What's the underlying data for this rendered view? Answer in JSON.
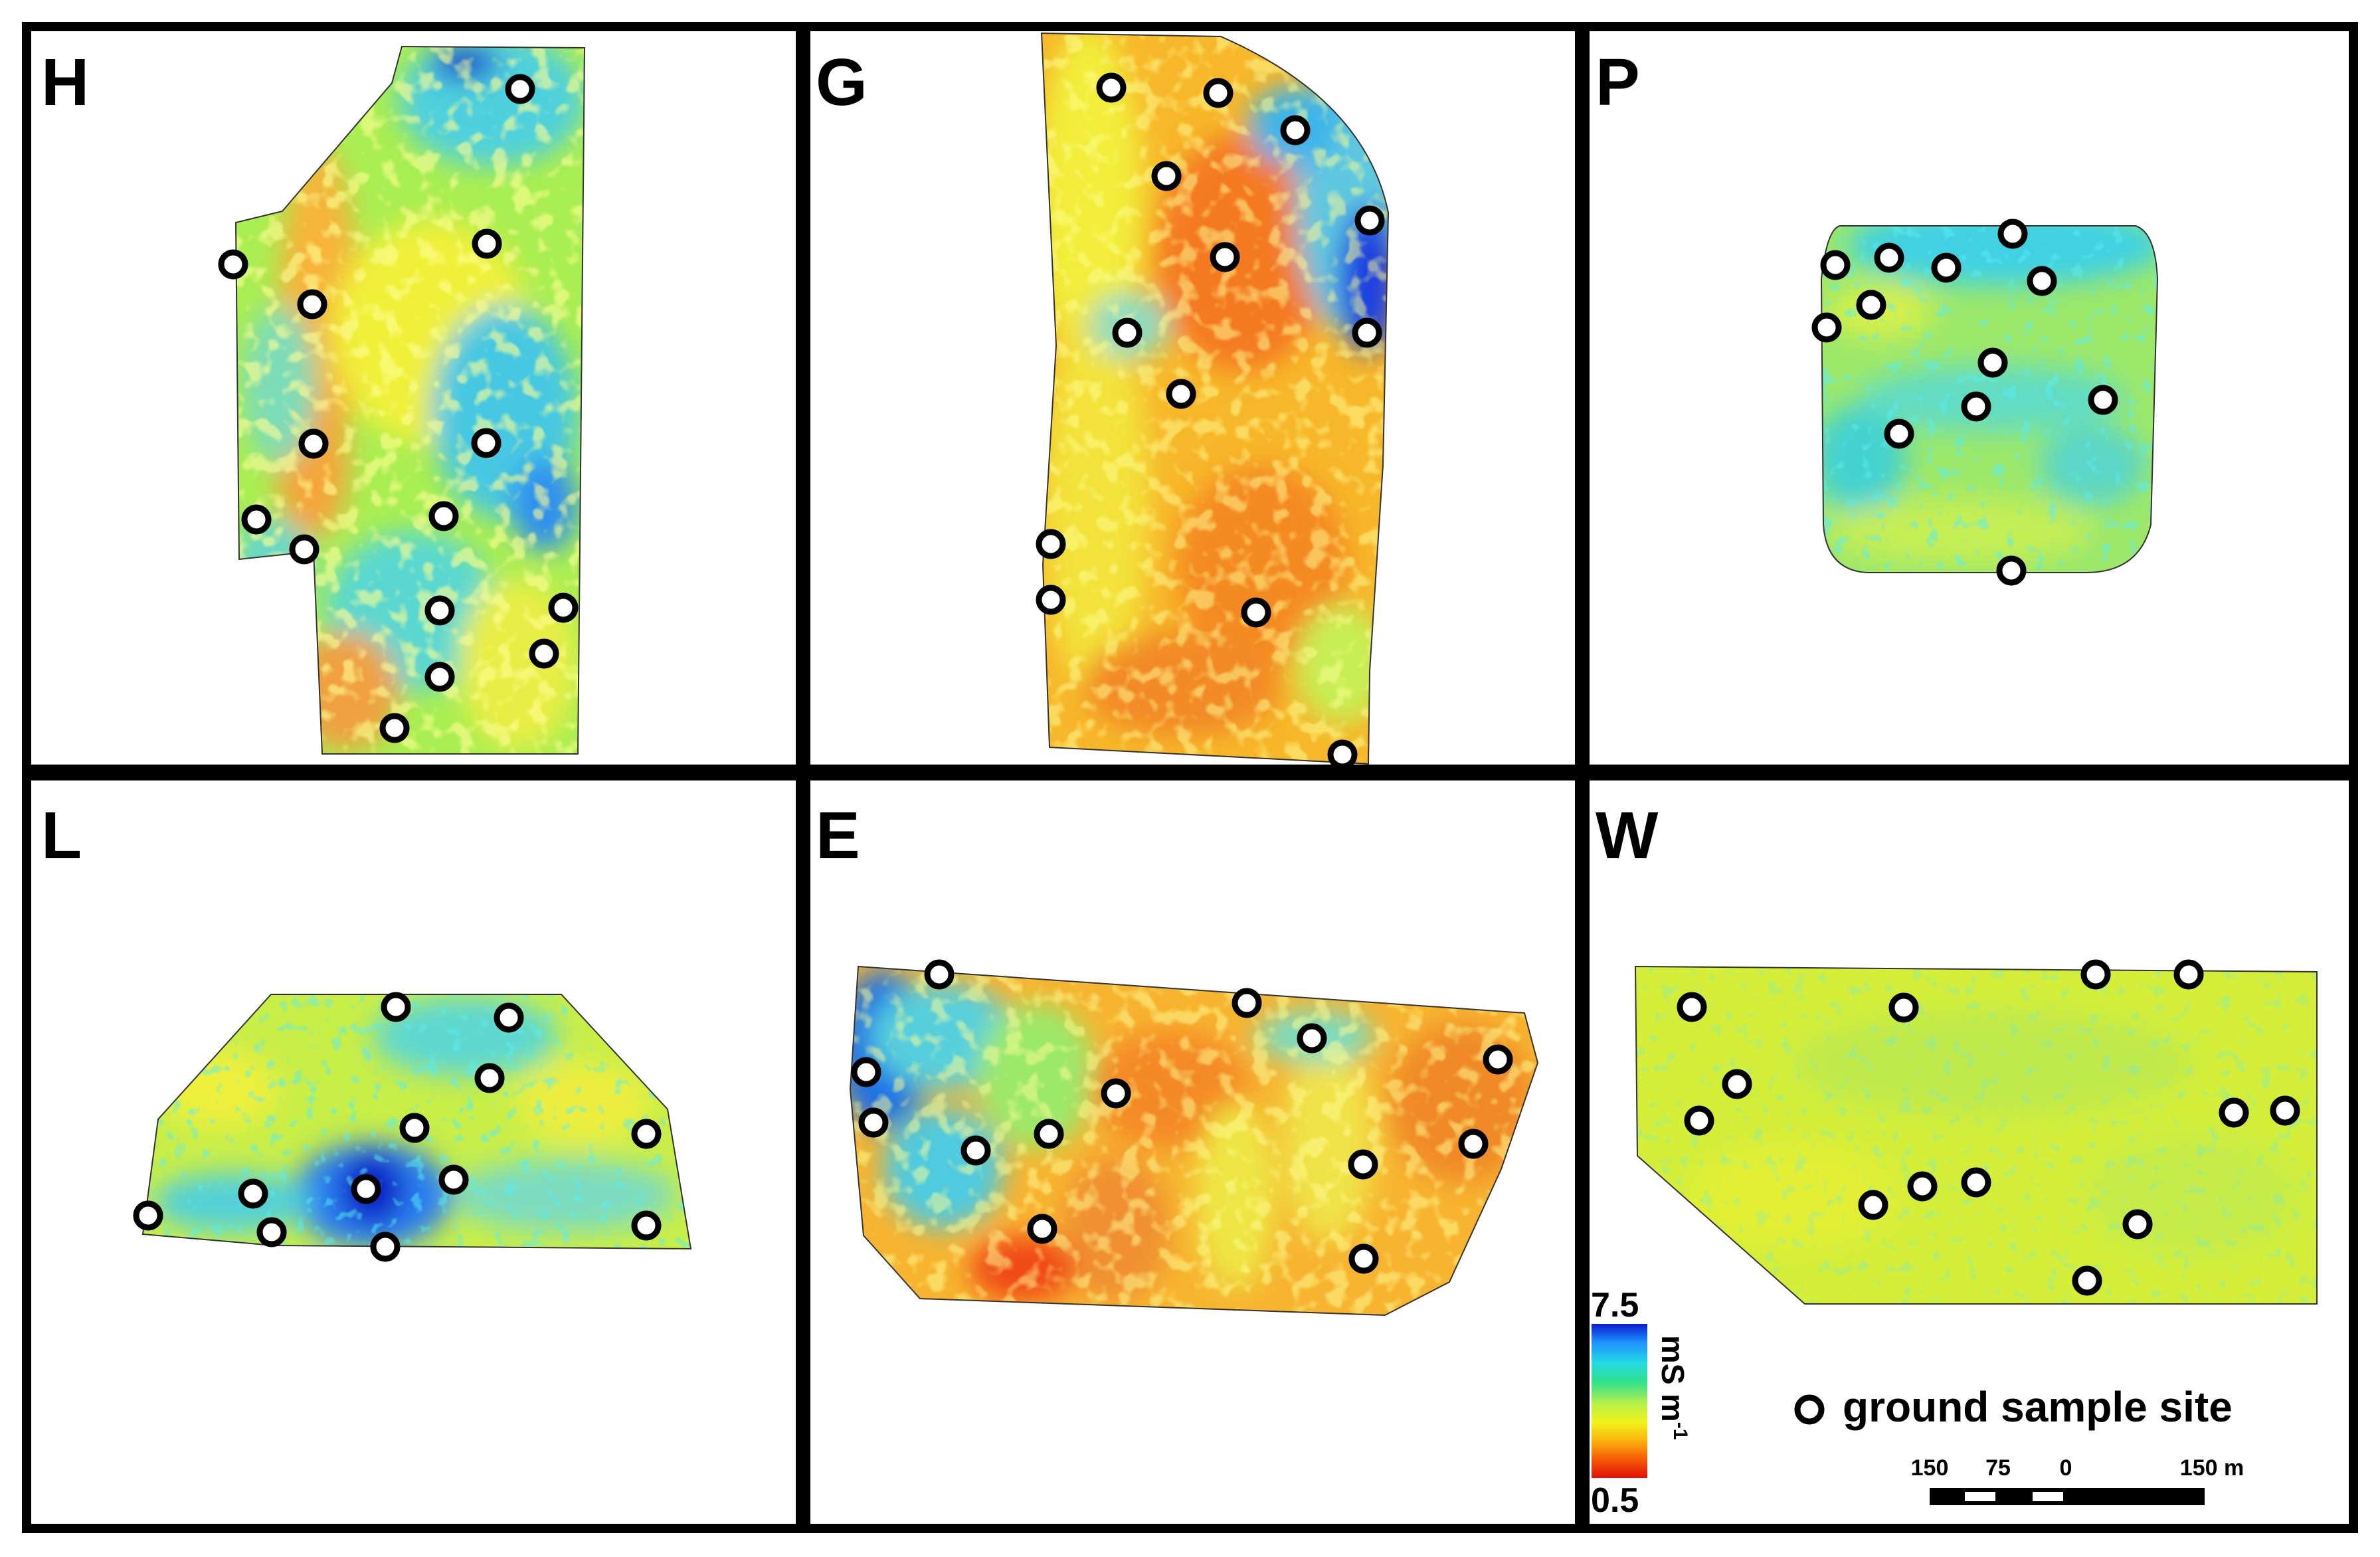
{
  "panels": [
    {
      "id": "H",
      "label": "H"
    },
    {
      "id": "G",
      "label": "G"
    },
    {
      "id": "P",
      "label": "P"
    },
    {
      "id": "L",
      "label": "L"
    },
    {
      "id": "E",
      "label": "E"
    },
    {
      "id": "W",
      "label": "W"
    }
  ],
  "colorbar": {
    "max_label": "7.5",
    "min_label": "0.5",
    "unit": "mS m",
    "unit_exponent": "-1",
    "colors": [
      "#0a1ecf",
      "#1f8fff",
      "#24d8e6",
      "#33e08a",
      "#b8f04a",
      "#f2f21a",
      "#fbb20c",
      "#f45a08",
      "#e01208"
    ]
  },
  "legend": {
    "sample_site_label": "ground sample site"
  },
  "scalebar": {
    "labels": [
      "150",
      "75",
      "0",
      "150 m"
    ]
  }
}
